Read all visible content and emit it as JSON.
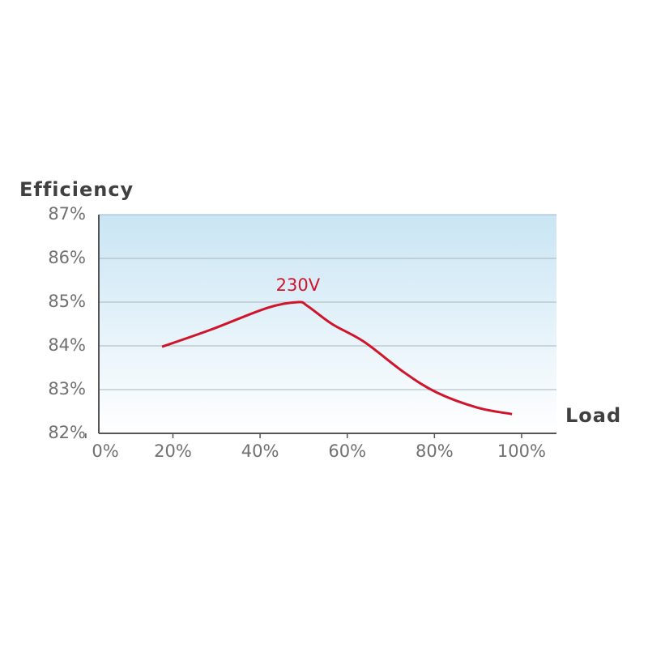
{
  "chart_data": {
    "type": "line",
    "y_title": "Efficiency",
    "x_title": "Load",
    "x": [
      17.5,
      28.7,
      41.7,
      48.7,
      50.9,
      56.5,
      63.9,
      73.1,
      80.6,
      89.8,
      97.8
    ],
    "series": [
      {
        "name": "230V",
        "color": "#d0142c",
        "values": [
          83.98,
          84.37,
          84.87,
          85.0,
          84.91,
          84.5,
          84.09,
          83.39,
          82.93,
          82.59,
          82.44
        ]
      }
    ],
    "xlim": [
      3,
      108
    ],
    "xticks": [
      {
        "value": 0,
        "label": "0%"
      },
      {
        "value": 20,
        "label": "20%"
      },
      {
        "value": 40,
        "label": "40%"
      },
      {
        "value": 60,
        "label": "60%"
      },
      {
        "value": 80,
        "label": "80%"
      },
      {
        "value": 100,
        "label": "100%"
      }
    ],
    "ylim": [
      82,
      87
    ],
    "yticks": [
      {
        "value": 82,
        "label": "82%"
      },
      {
        "value": 83,
        "label": "83%"
      },
      {
        "value": 84,
        "label": "84%"
      },
      {
        "value": 85,
        "label": "85%"
      },
      {
        "value": 86,
        "label": "86%"
      },
      {
        "value": 87,
        "label": "87%"
      }
    ],
    "grid": true
  }
}
